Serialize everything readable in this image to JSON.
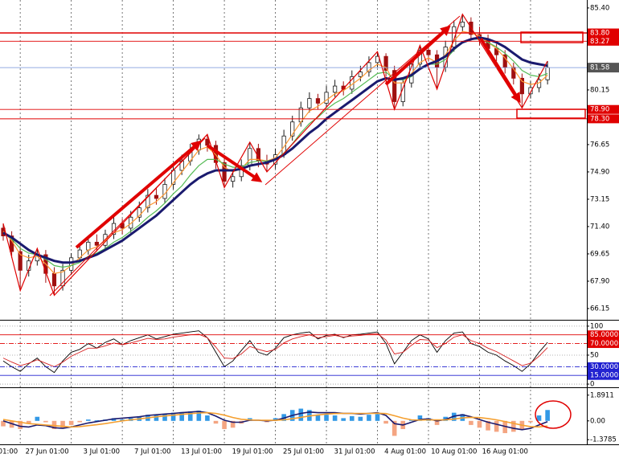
{
  "chart_data": [
    {
      "type": "candlestick",
      "categories": [
        null,
        null,
        "01:00",
        null,
        null,
        null,
        null,
        null,
        "27 Jun 01:00",
        null,
        null,
        null,
        null,
        null,
        "3 Jul 01:00",
        null,
        null,
        null,
        null,
        null,
        "7 Jul 01:00",
        null,
        null,
        null,
        null,
        null,
        "13 Jul 01:00",
        null,
        null,
        null,
        null,
        null,
        "19 Jul 01:00",
        null,
        null,
        null,
        null,
        null,
        "25 Jul 01:00",
        null,
        null,
        null,
        null,
        null,
        "31 Jul 01:00",
        null,
        null,
        null,
        null,
        null,
        "4 Aug 01:00",
        null,
        null,
        null,
        null,
        null,
        "10 Aug 01:00",
        null,
        null,
        null,
        null,
        null,
        "16 Aug 01:00",
        null,
        null
      ],
      "open": [
        71.3,
        70.8,
        69.8,
        68.6,
        69.2,
        69.6,
        68.4,
        67.6,
        68.6,
        69.4,
        69.9,
        70.4,
        70.2,
        70.9,
        71.6,
        71.3,
        72.0,
        72.6,
        73.4,
        73.2,
        74.1,
        75.0,
        75.6,
        76.3,
        77.0,
        76.6,
        75.5,
        74.3,
        74.6,
        75.3,
        76.4,
        75.6,
        75.4,
        76.0,
        77.2,
        78.1,
        79.0,
        79.6,
        79.3,
        80.0,
        80.4,
        80.2,
        81.0,
        81.3,
        81.9,
        82.3,
        81.4,
        79.4,
        80.6,
        81.8,
        82.7,
        82.4,
        81.6,
        82.9,
        84.2,
        84.5,
        83.7,
        83.4,
        82.8,
        82.4,
        81.6,
        80.9,
        79.9,
        80.3,
        80.8
      ],
      "high": [
        71.6,
        71.1,
        70.1,
        69.6,
        70.0,
        69.9,
        68.8,
        69.0,
        69.7,
        70.3,
        70.8,
        70.9,
        71.2,
        72.0,
        71.9,
        72.4,
        73.0,
        73.8,
        73.9,
        74.5,
        75.4,
        76.0,
        76.7,
        77.3,
        77.3,
        76.9,
        75.8,
        75.0,
        75.7,
        76.8,
        76.7,
        76.0,
        76.4,
        77.6,
        78.5,
        79.4,
        80.0,
        79.9,
        80.4,
        80.8,
        80.7,
        81.4,
        81.7,
        82.3,
        82.6,
        82.5,
        81.7,
        80.9,
        82.1,
        83.0,
        83.0,
        82.7,
        83.3,
        84.6,
        85.0,
        84.8,
        84.2,
        83.7,
        83.1,
        82.7,
        81.9,
        81.2,
        80.7,
        81.2,
        82.0
      ],
      "low": [
        70.5,
        69.4,
        67.3,
        68.2,
        68.9,
        67.8,
        67.0,
        67.3,
        68.3,
        69.1,
        69.6,
        69.8,
        69.9,
        70.6,
        70.9,
        71.0,
        71.7,
        72.3,
        72.8,
        72.9,
        73.8,
        74.7,
        75.3,
        76.0,
        76.2,
        75.1,
        73.9,
        73.9,
        74.3,
        75.0,
        75.2,
        74.9,
        75.1,
        75.8,
        76.9,
        77.8,
        78.7,
        78.9,
        79.0,
        79.7,
        79.8,
        79.9,
        80.7,
        81.0,
        81.6,
        81.0,
        78.9,
        79.1,
        80.3,
        81.5,
        82.0,
        80.2,
        81.3,
        82.6,
        83.9,
        83.3,
        83.0,
        82.4,
        82.0,
        81.2,
        80.5,
        79.0,
        79.6,
        80.0,
        80.5
      ],
      "close": [
        70.8,
        69.8,
        68.6,
        69.2,
        69.6,
        68.4,
        67.6,
        68.6,
        69.4,
        69.9,
        70.4,
        70.2,
        70.9,
        71.6,
        71.3,
        72.0,
        72.6,
        73.4,
        73.2,
        74.1,
        75.0,
        75.6,
        76.3,
        77.0,
        76.6,
        75.5,
        74.3,
        74.6,
        75.3,
        76.4,
        75.6,
        75.4,
        76.0,
        77.2,
        78.1,
        79.0,
        79.6,
        79.3,
        80.0,
        80.4,
        80.2,
        81.0,
        81.3,
        81.9,
        82.3,
        81.4,
        79.4,
        80.6,
        81.8,
        82.7,
        82.4,
        81.6,
        82.9,
        84.2,
        84.5,
        83.7,
        83.4,
        82.8,
        82.4,
        81.6,
        80.9,
        79.9,
        80.3,
        80.8,
        81.58
      ],
      "up_color": "#1a1a1a",
      "down_color": "#a01010",
      "series": [
        {
          "color": "#ff9933",
          "values": [
            71.1,
            70.5,
            69.6,
            69.4,
            69.5,
            69.0,
            68.4,
            68.5,
            68.9,
            69.4,
            69.9,
            70.1,
            70.5,
            71.0,
            71.2,
            71.6,
            72.1,
            72.7,
            73.0,
            73.5,
            74.2,
            74.9,
            75.6,
            76.3,
            76.5,
            76.0,
            75.2,
            74.9,
            75.1,
            75.7,
            75.7,
            75.6,
            75.8,
            76.5,
            77.3,
            78.1,
            78.8,
            79.1,
            79.5,
            79.9,
            80.1,
            80.5,
            80.9,
            81.4,
            81.8,
            81.6,
            80.6,
            80.6,
            81.2,
            81.9,
            82.2,
            81.9,
            82.4,
            83.3,
            83.9,
            83.8,
            83.6,
            83.2,
            82.8,
            82.2,
            81.5,
            80.7,
            80.5,
            80.6,
            81.1
          ]
        },
        {
          "color": "#55bb55",
          "values": [
            71.0,
            70.6,
            70.0,
            69.7,
            69.6,
            69.3,
            68.9,
            68.8,
            68.9,
            69.1,
            69.5,
            69.7,
            70.0,
            70.4,
            70.7,
            71.1,
            71.5,
            72.0,
            72.4,
            72.9,
            73.5,
            74.0,
            74.7,
            75.3,
            75.7,
            75.7,
            75.4,
            75.2,
            75.2,
            75.5,
            75.6,
            75.6,
            75.7,
            76.1,
            76.7,
            77.4,
            78.0,
            78.4,
            78.9,
            79.3,
            79.6,
            80.0,
            80.4,
            80.8,
            81.2,
            81.3,
            80.8,
            80.8,
            81.0,
            81.5,
            81.8,
            81.8,
            82.1,
            82.7,
            83.2,
            83.4,
            83.4,
            83.2,
            82.9,
            82.5,
            82.0,
            81.4,
            81.1,
            81.0,
            81.2
          ]
        },
        {
          "color": "#1a1a6e",
          "values": [
            71.0,
            70.7,
            70.3,
            69.9,
            69.6,
            69.4,
            69.2,
            69.1,
            69.1,
            69.2,
            69.4,
            69.6,
            69.9,
            70.2,
            70.5,
            70.9,
            71.3,
            71.7,
            72.1,
            72.6,
            73.1,
            73.6,
            74.1,
            74.5,
            74.8,
            75.0,
            75.0,
            75.0,
            75.1,
            75.3,
            75.4,
            75.5,
            75.7,
            76.0,
            76.4,
            76.9,
            77.4,
            77.8,
            78.3,
            78.7,
            79.1,
            79.5,
            79.9,
            80.3,
            80.7,
            80.9,
            80.8,
            80.9,
            81.1,
            81.5,
            81.8,
            82.0,
            82.3,
            82.8,
            83.2,
            83.4,
            83.5,
            83.4,
            83.2,
            82.9,
            82.5,
            82.1,
            81.9,
            81.8,
            81.7
          ]
        }
      ],
      "zigzag": {
        "color": "#e00000",
        "x": [
          0,
          2,
          4,
          6,
          24,
          26,
          29,
          31,
          44,
          46,
          49,
          51,
          54,
          61,
          64
        ],
        "values": [
          71.6,
          67.3,
          70.0,
          67.0,
          77.3,
          73.9,
          76.8,
          74.9,
          82.6,
          78.9,
          83.0,
          80.2,
          85.0,
          79.0,
          82.0
        ]
      },
      "levels": [
        {
          "value": 83.8,
          "label": "83.80",
          "color": "#e00000"
        },
        {
          "value": 83.27,
          "label": "83.27",
          "color": "#e00000"
        },
        {
          "value": 78.9,
          "label": "78.90",
          "color": "#e00000"
        },
        {
          "value": 78.3,
          "label": "78.30",
          "color": "#e00000"
        }
      ],
      "last_price": 81.58,
      "last_price_color": "#7090d8",
      "ylim": [
        65.48,
        85.91
      ],
      "yticks": [
        {
          "value": 85.4,
          "label": "85.40"
        },
        80.15,
        76.65,
        {
          "value": 74.9,
          "label": "74.90"
        },
        73.15,
        {
          "value": 71.4,
          "label": "71.40"
        },
        69.65,
        {
          "value": 67.9,
          "label": "67.90"
        },
        66.15
      ],
      "x_grid": true
    },
    {
      "type": "line",
      "series": [
        {
          "color": "#000000",
          "values": [
            40,
            30,
            22,
            35,
            45,
            30,
            20,
            40,
            55,
            60,
            70,
            62,
            72,
            78,
            68,
            75,
            80,
            85,
            78,
            82,
            86,
            88,
            90,
            92,
            80,
            55,
            30,
            40,
            58,
            75,
            55,
            50,
            62,
            80,
            85,
            88,
            90,
            78,
            84,
            86,
            80,
            85,
            86,
            88,
            90,
            70,
            35,
            55,
            75,
            85,
            78,
            55,
            75,
            88,
            90,
            70,
            65,
            55,
            50,
            40,
            32,
            22,
            35,
            55,
            72
          ]
        },
        {
          "color": "#d62020",
          "values": [
            45,
            38,
            32,
            36,
            42,
            36,
            30,
            38,
            48,
            55,
            62,
            62,
            66,
            71,
            68,
            71,
            75,
            79,
            77,
            78,
            81,
            83,
            85,
            86,
            80,
            64,
            45,
            44,
            52,
            65,
            60,
            56,
            60,
            71,
            78,
            82,
            85,
            80,
            82,
            84,
            81,
            83,
            84,
            86,
            87,
            76,
            52,
            55,
            67,
            77,
            76,
            63,
            70,
            81,
            85,
            75,
            70,
            62,
            56,
            48,
            40,
            32,
            36,
            48,
            63
          ]
        }
      ],
      "ylim": [
        -4.1,
        106.8
      ],
      "yticks": [
        100,
        50,
        0
      ],
      "levels": [
        {
          "value": 85,
          "label": "85.0000",
          "color": "#e00000",
          "style": "solid"
        },
        {
          "value": 70,
          "label": "70.0000",
          "color": "#e00000",
          "style": "dashdot"
        },
        {
          "value": 30,
          "label": "30.0000",
          "color": "#2020d0",
          "style": "dashdot"
        },
        {
          "value": 15,
          "label": "15.0000",
          "color": "#2020d0",
          "style": "solid"
        }
      ]
    },
    {
      "type": "bar",
      "values": [
        -0.4,
        -0.5,
        -0.6,
        -0.2,
        0.3,
        -0.1,
        -0.6,
        -0.5,
        -0.3,
        -0.1,
        0.1,
        0.05,
        0.1,
        0.2,
        0.1,
        0.2,
        0.3,
        0.45,
        0.4,
        0.5,
        0.6,
        0.65,
        0.7,
        0.75,
        0.4,
        -0.2,
        -0.6,
        -0.5,
        -0.2,
        0.2,
        0.0,
        -0.1,
        0.2,
        0.5,
        0.8,
        0.9,
        0.8,
        0.4,
        0.45,
        0.4,
        0.2,
        0.35,
        0.3,
        0.45,
        0.5,
        -0.2,
        -1.1,
        -0.6,
        0.1,
        0.4,
        0.2,
        -0.3,
        0.3,
        0.6,
        0.5,
        -0.3,
        -0.5,
        -0.7,
        -0.8,
        -0.9,
        -0.8,
        -0.6,
        -0.1,
        0.4,
        0.8
      ],
      "positive_color": "#3399e6",
      "negative_color": "#f4a582",
      "series": [
        {
          "color": "#1a1a6e",
          "values": [
            0.0,
            -0.2,
            -0.4,
            -0.45,
            -0.3,
            -0.35,
            -0.5,
            -0.55,
            -0.45,
            -0.3,
            -0.15,
            -0.05,
            0.05,
            0.15,
            0.2,
            0.25,
            0.3,
            0.4,
            0.45,
            0.5,
            0.55,
            0.6,
            0.65,
            0.7,
            0.6,
            0.35,
            0.05,
            -0.1,
            -0.1,
            0.05,
            0.05,
            0.0,
            0.05,
            0.2,
            0.4,
            0.55,
            0.65,
            0.6,
            0.6,
            0.6,
            0.55,
            0.55,
            0.5,
            0.55,
            0.6,
            0.4,
            -0.2,
            -0.3,
            -0.1,
            0.1,
            0.15,
            0.0,
            0.1,
            0.35,
            0.45,
            0.3,
            0.1,
            -0.1,
            -0.25,
            -0.4,
            -0.55,
            -0.65,
            -0.55,
            -0.3,
            -0.05
          ]
        },
        {
          "color": "#f5a030",
          "values": [
            0.1,
            0.0,
            -0.1,
            -0.2,
            -0.25,
            -0.3,
            -0.35,
            -0.4,
            -0.45,
            -0.42,
            -0.35,
            -0.28,
            -0.2,
            -0.1,
            0.0,
            0.08,
            0.15,
            0.22,
            0.3,
            0.36,
            0.42,
            0.48,
            0.53,
            0.58,
            0.6,
            0.55,
            0.42,
            0.25,
            0.12,
            0.07,
            0.05,
            0.04,
            0.04,
            0.08,
            0.16,
            0.26,
            0.36,
            0.44,
            0.5,
            0.54,
            0.55,
            0.55,
            0.55,
            0.55,
            0.56,
            0.54,
            0.38,
            0.2,
            0.08,
            0.06,
            0.08,
            0.07,
            0.07,
            0.13,
            0.22,
            0.26,
            0.24,
            0.17,
            0.08,
            -0.05,
            -0.18,
            -0.32,
            -0.42,
            -0.44,
            -0.38
          ]
        }
      ],
      "ylim": [
        -1.723,
        2.35
      ],
      "yticks": [
        1.8911,
        {
          "value": 0,
          "label": "0.00"
        },
        -1.3785
      ]
    }
  ]
}
